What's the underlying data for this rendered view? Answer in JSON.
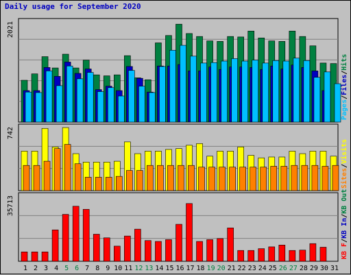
{
  "title": "Daily usage for September 2020",
  "colors": {
    "hits": "#008040",
    "files": "#0000c0",
    "pages": "#00c0ff",
    "visits": "#ffff00",
    "sites": "#ff8000",
    "kbin": "#0000c0",
    "kbout": "#008040",
    "kbf": "#ff0000",
    "weekend_day": "#008040",
    "weekday": "#000000"
  },
  "chart_data": [
    {
      "type": "bar",
      "name": "hits-files-pages",
      "categories": [
        "1",
        "2",
        "3",
        "4",
        "5",
        "6",
        "7",
        "8",
        "9",
        "10",
        "11",
        "12",
        "13",
        "14",
        "15",
        "16",
        "17",
        "18",
        "19",
        "20",
        "21",
        "22",
        "23",
        "24",
        "25",
        "26",
        "27",
        "28",
        "29",
        "30",
        "31"
      ],
      "ymax_label": "2021",
      "ylim": [
        0,
        2021
      ],
      "right_labels": [
        "Pages",
        "/",
        "Files",
        "/",
        "Hits"
      ],
      "series": [
        {
          "name": "Hits",
          "color": "#008040",
          "values": [
            850,
            980,
            1330,
            1100,
            1380,
            1100,
            1260,
            960,
            940,
            960,
            1350,
            900,
            860,
            1610,
            1760,
            1990,
            1800,
            1740,
            1650,
            1640,
            1740,
            1730,
            1850,
            1710,
            1650,
            1640,
            1850,
            1740,
            1550,
            1200,
            1190
          ]
        },
        {
          "name": "Files",
          "color": "#0000c0",
          "values": [
            640,
            640,
            1110,
            930,
            1220,
            990,
            1080,
            660,
            730,
            640,
            1130,
            890,
            610,
            1140,
            1140,
            1170,
            1040,
            1040,
            1120,
            1070,
            1120,
            1120,
            1110,
            1070,
            1140,
            1080,
            1160,
            1110,
            1040,
            640,
            0
          ]
        },
        {
          "name": "Pages",
          "color": "#00c0ff",
          "values": [
            610,
            600,
            1040,
            740,
            1140,
            880,
            1010,
            620,
            700,
            530,
            1050,
            730,
            600,
            1130,
            1460,
            1560,
            1340,
            1200,
            1210,
            1240,
            1290,
            1240,
            1260,
            1200,
            1250,
            1240,
            1300,
            1250,
            910,
            1020,
            780
          ]
        }
      ]
    },
    {
      "type": "bar",
      "name": "visits-sites",
      "categories": [
        "1",
        "2",
        "3",
        "4",
        "5",
        "6",
        "7",
        "8",
        "9",
        "10",
        "11",
        "12",
        "13",
        "14",
        "15",
        "16",
        "17",
        "18",
        "19",
        "20",
        "21",
        "22",
        "23",
        "24",
        "25",
        "26",
        "27",
        "28",
        "29",
        "30",
        "31"
      ],
      "ymax_label": "742",
      "ylim": [
        0,
        742
      ],
      "right_labels": [
        "Sites",
        "/",
        "Visits"
      ],
      "series": [
        {
          "name": "Visits",
          "color": "#ffff00",
          "values": [
            470,
            470,
            740,
            520,
            750,
            440,
            340,
            340,
            340,
            350,
            580,
            440,
            470,
            470,
            490,
            500,
            540,
            560,
            410,
            470,
            470,
            520,
            420,
            390,
            400,
            400,
            470,
            440,
            470,
            470,
            410
          ]
        },
        {
          "name": "Sites",
          "color": "#ff8000",
          "values": [
            300,
            300,
            350,
            500,
            550,
            320,
            160,
            160,
            160,
            170,
            240,
            240,
            300,
            300,
            300,
            300,
            300,
            280,
            280,
            280,
            280,
            280,
            280,
            280,
            290,
            290,
            300,
            300,
            300,
            290,
            300
          ]
        }
      ]
    },
    {
      "type": "bar",
      "name": "kbytes",
      "categories": [
        "1",
        "2",
        "3",
        "4",
        "5",
        "6",
        "7",
        "8",
        "9",
        "10",
        "11",
        "12",
        "13",
        "14",
        "15",
        "16",
        "17",
        "18",
        "19",
        "20",
        "21",
        "22",
        "23",
        "24",
        "25",
        "26",
        "27",
        "28",
        "29",
        "30",
        "31"
      ],
      "ymax_label": "35713",
      "ylim": [
        0,
        35713
      ],
      "right_labels": [
        "KB F",
        "/",
        "KB In",
        "/",
        "KB Out"
      ],
      "series": [
        {
          "name": "KB F",
          "color": "#ff0000",
          "values": [
            5200,
            5200,
            5200,
            17400,
            26000,
            30500,
            28800,
            15000,
            13000,
            8400,
            14000,
            17800,
            11500,
            11000,
            12000,
            20500,
            32000,
            11000,
            12000,
            12600,
            18500,
            6000,
            6000,
            7000,
            8000,
            9000,
            6000,
            6200,
            9800,
            7800,
            0
          ]
        }
      ]
    }
  ]
}
